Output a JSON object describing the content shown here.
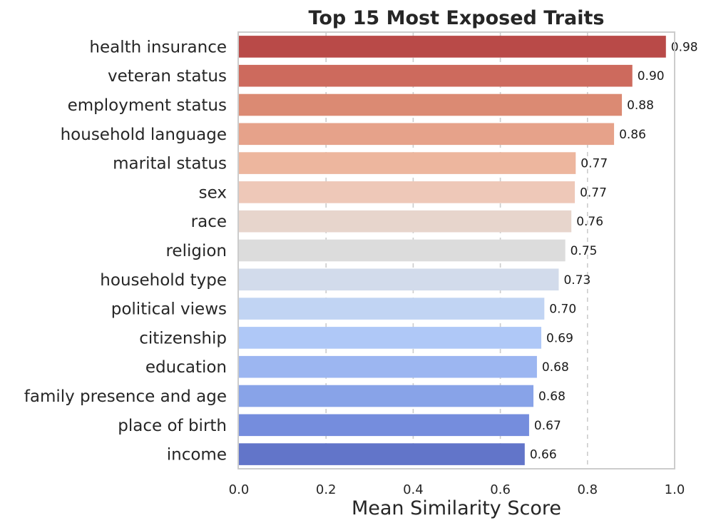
{
  "chart_data": {
    "type": "bar",
    "orientation": "horizontal",
    "title": "Top 15 Most Exposed Traits",
    "xlabel": "Mean Similarity Score",
    "ylabel": "",
    "xlim": [
      0.0,
      1.0
    ],
    "xticks": [
      0.0,
      0.2,
      0.4,
      0.6,
      0.8,
      1.0
    ],
    "xtick_labels": [
      "0.0",
      "0.2",
      "0.4",
      "0.6",
      "0.8",
      "1.0"
    ],
    "grid": true,
    "categories": [
      "health insurance",
      "veteran status",
      "employment status",
      "household language",
      "marital status",
      "sex",
      "race",
      "religion",
      "household type",
      "political views",
      "citizenship",
      "education",
      "family presence and age",
      "place of birth",
      "income"
    ],
    "values": [
      0.98,
      0.903,
      0.879,
      0.861,
      0.773,
      0.771,
      0.763,
      0.749,
      0.734,
      0.701,
      0.694,
      0.684,
      0.676,
      0.666,
      0.656
    ],
    "value_labels": [
      "0.98",
      "0.90",
      "0.88",
      "0.86",
      "0.77",
      "0.77",
      "0.76",
      "0.75",
      "0.73",
      "0.70",
      "0.69",
      "0.68",
      "0.68",
      "0.67",
      "0.66"
    ],
    "colors": [
      "#b94a48",
      "#cd6a5d",
      "#db8a73",
      "#e6a28a",
      "#edb69e",
      "#eec8b8",
      "#e7d5cc",
      "#dcdcdc",
      "#d2dbeb",
      "#c1d4f3",
      "#afc8f7",
      "#9cb6f1",
      "#88a3e8",
      "#758ddd",
      "#6275c9"
    ]
  }
}
